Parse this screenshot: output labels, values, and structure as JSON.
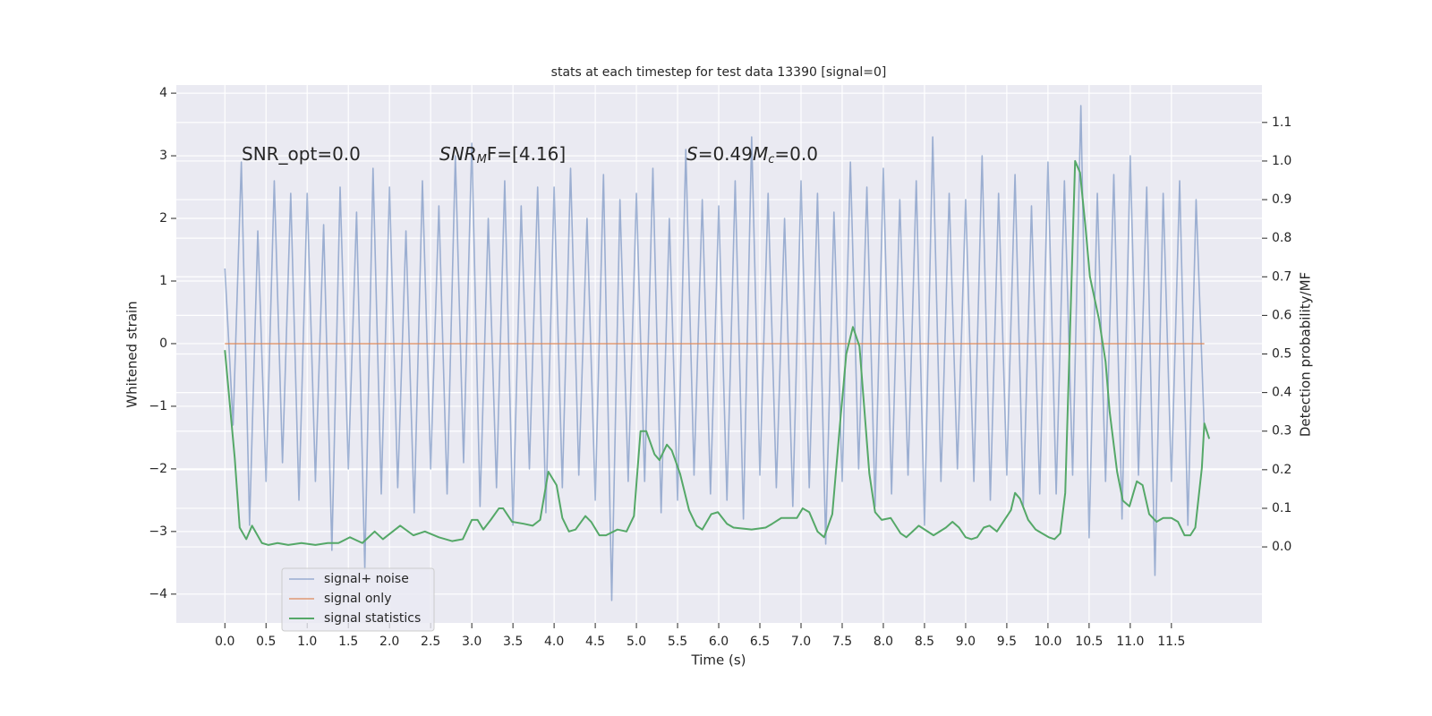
{
  "chart_data": {
    "type": "line",
    "title": "stats at each timestep for test data 13390 [signal=0]",
    "xlabel": "Time (s)",
    "ylabel": "Whitened strain",
    "y2label": "Detection probability/MF",
    "annotations": [
      [
        "SNR_opt=0.0"
      ],
      [
        "SNR",
        "M",
        "F=[4.16]"
      ],
      [
        "S",
        "=0.49",
        "M",
        "c",
        "=0.0"
      ]
    ],
    "xlim": [
      -0.59,
      12.6
    ],
    "ylim": [
      -4.46,
      4.13
    ],
    "y2lim": [
      -0.197,
      1.197
    ],
    "xticks": [
      {
        "value": 0,
        "label": "0.0"
      },
      {
        "value": 0.5,
        "label": "0.5"
      },
      {
        "value": 1,
        "label": "1.0"
      },
      {
        "value": 1.5,
        "label": "1.5"
      },
      {
        "value": 2,
        "label": "2.0"
      },
      {
        "value": 2.5,
        "label": "2.5"
      },
      {
        "value": 3,
        "label": "3.0"
      },
      {
        "value": 3.5,
        "label": "3.5"
      },
      {
        "value": 4,
        "label": "4.0"
      },
      {
        "value": 4.5,
        "label": "4.5"
      },
      {
        "value": 5,
        "label": "5.0"
      },
      {
        "value": 5.5,
        "label": "5.5"
      },
      {
        "value": 6,
        "label": "6.0"
      },
      {
        "value": 6.5,
        "label": "6.5"
      },
      {
        "value": 7,
        "label": "7.0"
      },
      {
        "value": 7.5,
        "label": "7.5"
      },
      {
        "value": 8,
        "label": "8.0"
      },
      {
        "value": 8.5,
        "label": "8.5"
      },
      {
        "value": 9,
        "label": "9.0"
      },
      {
        "value": 9.5,
        "label": "9.5"
      },
      {
        "value": 10,
        "label": "10.0"
      },
      {
        "value": 10.5,
        "label": "10.5"
      },
      {
        "value": 11,
        "label": "11.0"
      },
      {
        "value": 11.5,
        "label": "11.5"
      }
    ],
    "yticks": [
      {
        "value": -4,
        "label": "−4"
      },
      {
        "value": -3,
        "label": "−3"
      },
      {
        "value": -2,
        "label": "−2"
      },
      {
        "value": -1,
        "label": "−1"
      },
      0,
      1,
      2,
      3,
      4
    ],
    "y2ticks": [
      {
        "value": 0,
        "label": "0.0"
      },
      {
        "value": 0.1,
        "label": "0.1"
      },
      {
        "value": 0.2,
        "label": "0.2"
      },
      {
        "value": 0.3,
        "label": "0.3"
      },
      {
        "value": 0.4,
        "label": "0.4"
      },
      {
        "value": 0.5,
        "label": "0.5"
      },
      {
        "value": 0.6,
        "label": "0.6"
      },
      {
        "value": 0.7,
        "label": "0.7"
      },
      {
        "value": 0.8,
        "label": "0.8"
      },
      {
        "value": 0.9,
        "label": "0.9"
      },
      {
        "value": 1,
        "label": "1.0"
      },
      {
        "value": 1.1,
        "label": "1.1"
      }
    ],
    "grid": true,
    "legend": "lower left",
    "series": [
      {
        "name": "signal+ noise",
        "color": "#4c72b0",
        "x": [
          0.0,
          0.1,
          0.2,
          0.3,
          0.4,
          0.5,
          0.6,
          0.7,
          0.8,
          0.9,
          1.0,
          1.1,
          1.2,
          1.3,
          1.4,
          1.5,
          1.6,
          1.7,
          1.8,
          1.9,
          2.0,
          2.1,
          2.2,
          2.3,
          2.4,
          2.5,
          2.6,
          2.7,
          2.8,
          2.9,
          3.0,
          3.1,
          3.2,
          3.3,
          3.4,
          3.5,
          3.6,
          3.7,
          3.8,
          3.9,
          4.0,
          4.1,
          4.2,
          4.3,
          4.4,
          4.5,
          4.6,
          4.7,
          4.8,
          4.9,
          5.0,
          5.1,
          5.2,
          5.3,
          5.4,
          5.5,
          5.6,
          5.7,
          5.8,
          5.9,
          6.0,
          6.1,
          6.2,
          6.3,
          6.4,
          6.5,
          6.6,
          6.7,
          6.8,
          6.9,
          7.0,
          7.1,
          7.2,
          7.3,
          7.4,
          7.5,
          7.6,
          7.7,
          7.8,
          7.9,
          8.0,
          8.1,
          8.2,
          8.3,
          8.4,
          8.5,
          8.6,
          8.7,
          8.8,
          8.9,
          9.0,
          9.1,
          9.2,
          9.3,
          9.4,
          9.5,
          9.6,
          9.7,
          9.8,
          9.9,
          10.0,
          10.1,
          10.2,
          10.3,
          10.4,
          10.5,
          10.6,
          10.7,
          10.8,
          10.9,
          11.0,
          11.1,
          11.2,
          11.3,
          11.4,
          11.5,
          11.6,
          11.7,
          11.8,
          11.9
        ],
        "values": [
          1.2,
          -1.3,
          2.9,
          -2.9,
          1.8,
          -2.2,
          2.6,
          -1.9,
          2.4,
          -2.5,
          2.4,
          -2.2,
          1.9,
          -3.3,
          2.5,
          -2.0,
          2.1,
          -3.6,
          2.8,
          -2.4,
          2.5,
          -2.3,
          1.8,
          -2.7,
          2.6,
          -2.0,
          2.2,
          -2.4,
          3.0,
          -1.9,
          3.2,
          -2.6,
          2.0,
          -2.3,
          2.6,
          -2.9,
          2.2,
          -2.0,
          2.5,
          -2.7,
          2.5,
          -2.3,
          2.8,
          -2.1,
          2.0,
          -2.5,
          2.7,
          -4.1,
          2.3,
          -2.2,
          2.4,
          -2.2,
          2.8,
          -2.7,
          2.0,
          -2.5,
          3.1,
          -2.1,
          2.3,
          -2.4,
          2.2,
          -2.5,
          2.6,
          -2.8,
          3.3,
          -2.1,
          2.4,
          -2.3,
          2.0,
          -2.6,
          2.6,
          -2.3,
          2.4,
          -3.2,
          2.1,
          -2.2,
          2.9,
          -2.0,
          2.5,
          -2.6,
          2.8,
          -2.4,
          2.3,
          -2.1,
          2.6,
          -2.9,
          3.3,
          -2.2,
          2.4,
          -2.0,
          2.3,
          -2.2,
          3.0,
          -2.5,
          2.4,
          -2.1,
          2.7,
          -2.6,
          2.2,
          -2.4,
          2.9,
          -2.4,
          2.6,
          -2.1,
          3.8,
          -3.1,
          2.4,
          -2.2,
          2.7,
          -2.8,
          3.0,
          -2.1,
          2.5,
          -3.7,
          2.4,
          -2.2,
          2.6,
          -2.9,
          2.3,
          -1.4
        ]
      },
      {
        "name": "signal only",
        "color": "#dd8452",
        "x": [
          0.0,
          11.9
        ],
        "values": [
          0,
          0
        ]
      },
      {
        "name": "signal statistics",
        "color": "#55a868",
        "axis": "y2",
        "x": [
          0.0,
          0.12,
          0.18,
          0.26,
          0.33,
          0.45,
          0.53,
          0.64,
          0.77,
          0.93,
          1.1,
          1.25,
          1.38,
          1.52,
          1.67,
          1.82,
          1.92,
          2.13,
          2.29,
          2.43,
          2.6,
          2.76,
          2.89,
          3.0,
          3.07,
          3.14,
          3.23,
          3.33,
          3.38,
          3.49,
          3.63,
          3.74,
          3.83,
          3.93,
          4.03,
          4.1,
          4.18,
          4.26,
          4.38,
          4.45,
          4.55,
          4.63,
          4.77,
          4.88,
          4.97,
          5.05,
          5.12,
          5.22,
          5.28,
          5.37,
          5.43,
          5.53,
          5.64,
          5.73,
          5.8,
          5.91,
          5.99,
          6.1,
          6.18,
          6.4,
          6.57,
          6.65,
          6.76,
          6.95,
          7.02,
          7.1,
          7.2,
          7.28,
          7.38,
          7.47,
          7.55,
          7.63,
          7.71,
          7.83,
          7.9,
          7.98,
          8.09,
          8.21,
          8.28,
          8.43,
          8.61,
          8.76,
          8.84,
          8.92,
          9.0,
          9.07,
          9.14,
          9.22,
          9.29,
          9.38,
          9.55,
          9.6,
          9.66,
          9.76,
          9.85,
          9.93,
          10.01,
          10.08,
          10.15,
          10.21,
          10.33,
          10.39,
          10.46,
          10.51,
          10.62,
          10.7,
          10.75,
          10.84,
          10.91,
          10.99,
          11.08,
          11.15,
          11.23,
          11.32,
          11.4,
          11.5,
          11.58,
          11.66,
          11.73,
          11.79,
          11.87,
          11.9,
          11.96
        ],
        "values": [
          0.51,
          0.23,
          0.05,
          0.02,
          0.055,
          0.01,
          0.005,
          0.01,
          0.005,
          0.01,
          0.005,
          0.01,
          0.01,
          0.025,
          0.01,
          0.04,
          0.02,
          0.055,
          0.03,
          0.04,
          0.025,
          0.015,
          0.02,
          0.07,
          0.07,
          0.045,
          0.07,
          0.1,
          0.1,
          0.065,
          0.06,
          0.055,
          0.07,
          0.195,
          0.16,
          0.075,
          0.04,
          0.045,
          0.08,
          0.065,
          0.03,
          0.03,
          0.045,
          0.04,
          0.08,
          0.3,
          0.3,
          0.24,
          0.225,
          0.265,
          0.25,
          0.19,
          0.095,
          0.055,
          0.045,
          0.085,
          0.09,
          0.06,
          0.05,
          0.045,
          0.05,
          0.06,
          0.075,
          0.075,
          0.1,
          0.09,
          0.04,
          0.025,
          0.085,
          0.31,
          0.5,
          0.57,
          0.52,
          0.19,
          0.09,
          0.07,
          0.075,
          0.035,
          0.025,
          0.055,
          0.03,
          0.05,
          0.065,
          0.05,
          0.025,
          0.02,
          0.025,
          0.05,
          0.055,
          0.04,
          0.095,
          0.14,
          0.125,
          0.07,
          0.045,
          0.035,
          0.025,
          0.02,
          0.035,
          0.14,
          1.0,
          0.97,
          0.82,
          0.7,
          0.59,
          0.48,
          0.35,
          0.195,
          0.12,
          0.105,
          0.17,
          0.16,
          0.085,
          0.065,
          0.075,
          0.075,
          0.065,
          0.03,
          0.03,
          0.05,
          0.205,
          0.32,
          0.28
        ]
      }
    ]
  }
}
